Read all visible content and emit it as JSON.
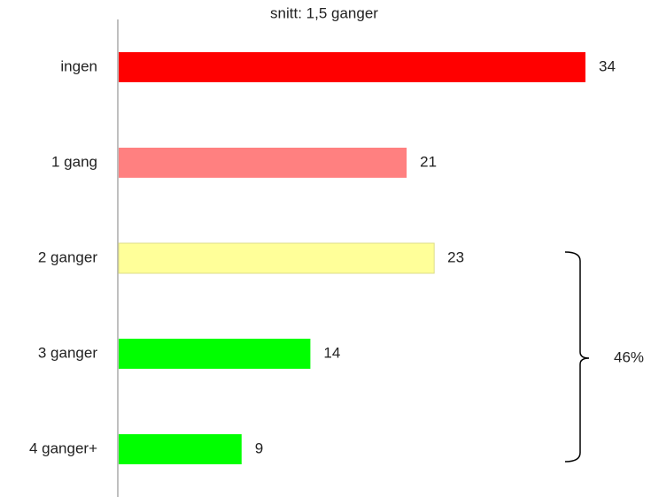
{
  "chart_data": {
    "type": "bar",
    "orientation": "horizontal",
    "title": "snitt: 1,5 ganger",
    "categories": [
      "ingen",
      "1 gang",
      "2 ganger",
      "3 ganger",
      "4 ganger+"
    ],
    "values": [
      34,
      21,
      23,
      14,
      9
    ],
    "colors": [
      "#ff0000",
      "#ff8080",
      "#ffff99",
      "#00ff00",
      "#00ff00"
    ],
    "annotation": "46%"
  }
}
